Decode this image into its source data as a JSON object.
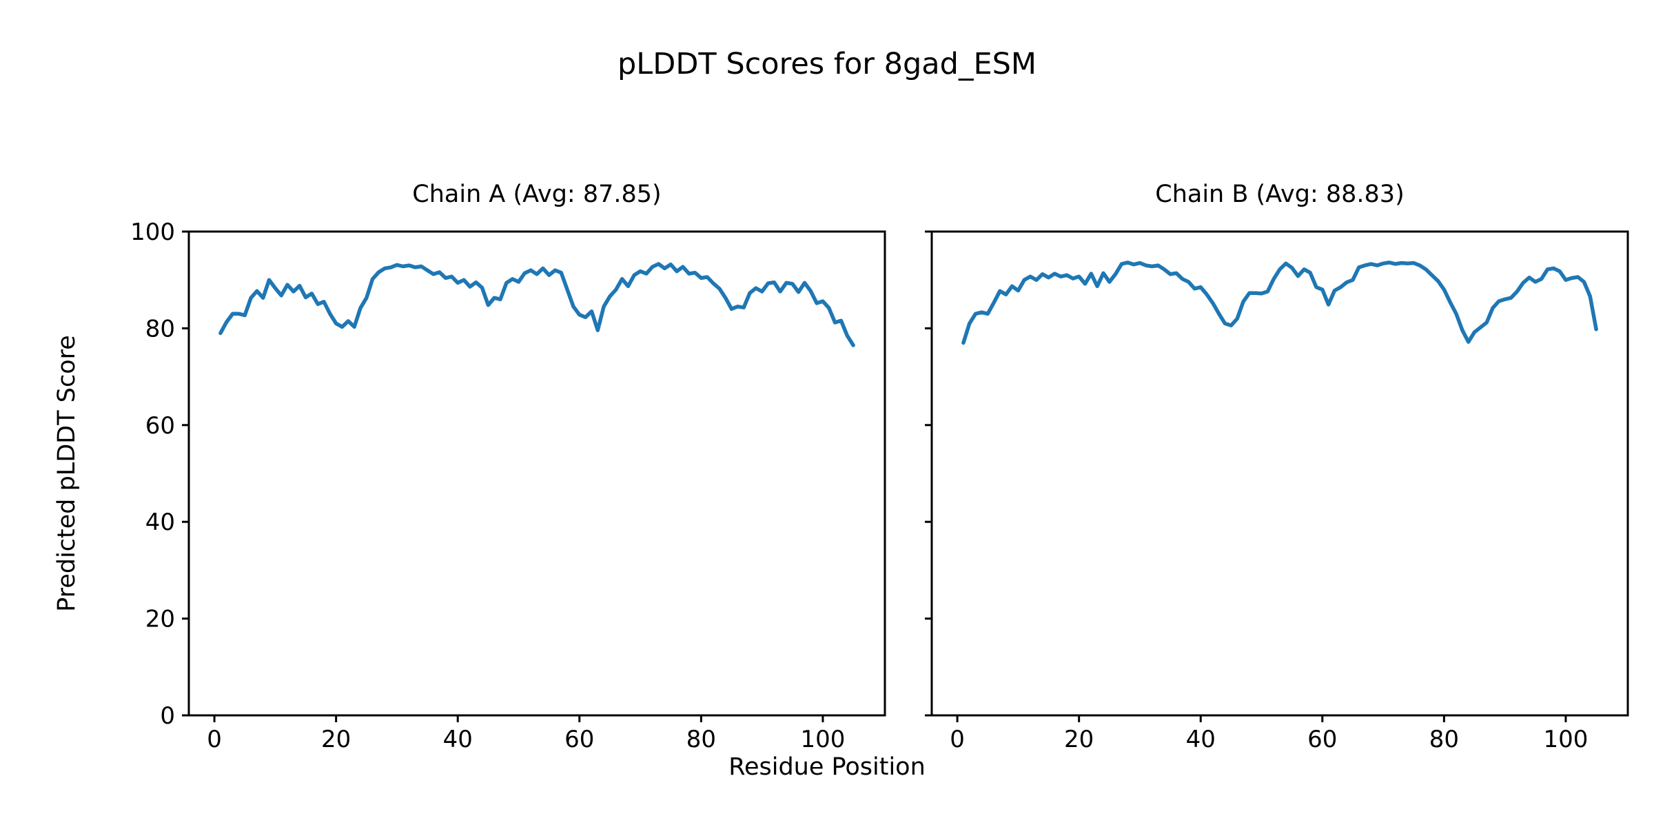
{
  "figure": {
    "title": "pLDDT Scores for 8gad_ESM",
    "xlabel": "Residue Position",
    "ylabel": "Predicted pLDDT Score",
    "background_color": "#ffffff",
    "line_color": "#1f77b4",
    "axis_color": "#000000"
  },
  "chart_data": [
    {
      "type": "line",
      "title": "Chain A (Avg: 87.85)",
      "chain": "A",
      "avg_plddt": 87.85,
      "x_start": 1,
      "xlim": [
        -4.2,
        110.2
      ],
      "ylim": [
        0,
        100
      ],
      "x_ticks": [
        0,
        20,
        40,
        60,
        80,
        100
      ],
      "y_ticks": [
        0,
        20,
        40,
        60,
        80,
        100
      ],
      "show_y_tick_labels": true,
      "grid": false,
      "legend": null,
      "values": [
        79.0,
        81.3,
        83.0,
        83.0,
        82.7,
        86.3,
        87.7,
        86.3,
        90.0,
        88.3,
        86.8,
        89.0,
        87.6,
        88.8,
        86.4,
        87.2,
        85.0,
        85.5,
        83.0,
        81.0,
        80.3,
        81.5,
        80.3,
        84.2,
        86.3,
        90.2,
        91.6,
        92.4,
        92.6,
        93.1,
        92.8,
        93.0,
        92.6,
        92.8,
        92.0,
        91.2,
        91.6,
        90.4,
        90.7,
        89.4,
        90.0,
        88.6,
        89.5,
        88.4,
        84.8,
        86.3,
        86.0,
        89.4,
        90.2,
        89.6,
        91.4,
        92.0,
        91.2,
        92.4,
        91.0,
        92.0,
        91.5,
        88.0,
        84.5,
        82.8,
        82.3,
        83.5,
        79.6,
        84.5,
        86.6,
        88.0,
        90.2,
        88.7,
        91.0,
        91.8,
        91.3,
        92.7,
        93.3,
        92.4,
        93.2,
        91.8,
        92.7,
        91.3,
        91.5,
        90.4,
        90.6,
        89.3,
        88.2,
        86.3,
        84.0,
        84.5,
        84.3,
        87.3,
        88.3,
        87.6,
        89.3,
        89.5,
        87.6,
        89.4,
        89.2,
        87.5,
        89.4,
        87.7,
        85.2,
        85.6,
        84.2,
        81.2,
        81.6,
        78.5,
        76.5
      ]
    },
    {
      "type": "line",
      "title": "Chain B (Avg: 88.83)",
      "chain": "B",
      "avg_plddt": 88.83,
      "x_start": 1,
      "xlim": [
        -4.2,
        110.2
      ],
      "ylim": [
        0,
        100
      ],
      "x_ticks": [
        0,
        20,
        40,
        60,
        80,
        100
      ],
      "y_ticks": [
        0,
        20,
        40,
        60,
        80,
        100
      ],
      "show_y_tick_labels": false,
      "grid": false,
      "legend": null,
      "values": [
        77.0,
        81.0,
        83.0,
        83.3,
        83.0,
        85.3,
        87.7,
        87.0,
        88.7,
        87.8,
        90.0,
        90.7,
        90.0,
        91.2,
        90.5,
        91.3,
        90.7,
        91.0,
        90.3,
        90.7,
        89.2,
        91.3,
        88.7,
        91.4,
        89.6,
        91.2,
        93.3,
        93.6,
        93.2,
        93.5,
        93.0,
        92.8,
        93.0,
        92.2,
        91.2,
        91.4,
        90.2,
        89.6,
        88.2,
        88.5,
        87.0,
        85.2,
        83.0,
        81.0,
        80.6,
        82.0,
        85.5,
        87.3,
        87.3,
        87.2,
        87.6,
        90.2,
        92.2,
        93.4,
        92.5,
        90.8,
        92.2,
        91.5,
        88.5,
        88.0,
        84.9,
        87.8,
        88.5,
        89.5,
        90.0,
        92.6,
        93.0,
        93.3,
        93.0,
        93.4,
        93.6,
        93.3,
        93.5,
        93.4,
        93.5,
        93.0,
        92.2,
        91.0,
        89.8,
        88.0,
        85.4,
        83.0,
        79.6,
        77.2,
        79.2,
        80.2,
        81.2,
        84.2,
        85.6,
        86.0,
        86.3,
        87.6,
        89.4,
        90.5,
        89.6,
        90.2,
        92.2,
        92.4,
        91.8,
        90.0,
        90.4,
        90.6,
        89.6,
        86.6,
        79.8
      ]
    }
  ]
}
